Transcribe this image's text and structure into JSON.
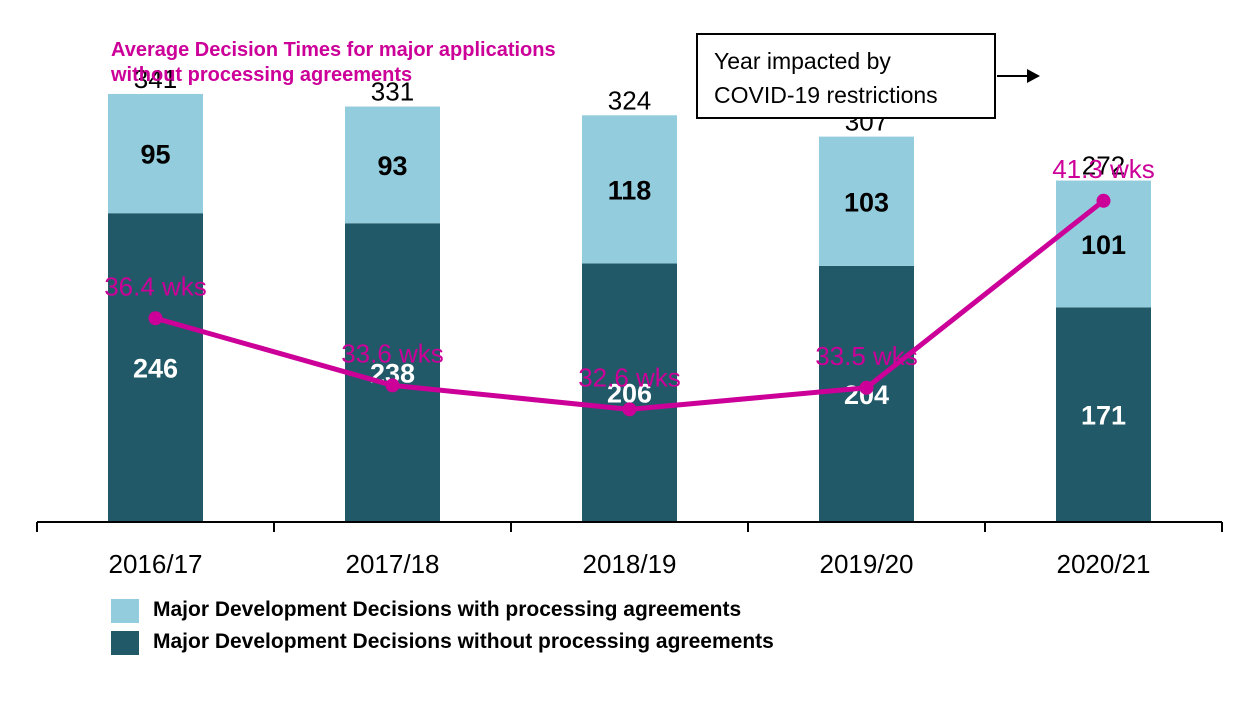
{
  "chart_data": {
    "type": "bar",
    "stacked": true,
    "categories": [
      "2016/17",
      "2017/18",
      "2018/19",
      "2019/20",
      "2020/21"
    ],
    "series": [
      {
        "name": "Major Development Decisions without processing agreements",
        "values": [
          246,
          238,
          206,
          204,
          171
        ],
        "color": "#215968"
      },
      {
        "name": "Major Development Decisions with  processing agreements",
        "values": [
          95,
          93,
          118,
          103,
          101
        ],
        "color": "#93CDDD"
      }
    ],
    "totals": [
      "341",
      "331",
      "324",
      "307",
      "272"
    ],
    "ylim": [
      0,
      380
    ],
    "line_series": {
      "name": "Average Decision Times for major applications without processing agreements",
      "title_lines": [
        "Average Decision  Times for major applications",
        "without processing agreements"
      ],
      "values": [
        36.4,
        33.6,
        32.6,
        33.5,
        41.3
      ],
      "labels": [
        "36.4 wks",
        "33.6 wks",
        "32.6 wks",
        "33.5 wks",
        "41.3 wks"
      ],
      "ylim": [
        27.9,
        47.8
      ],
      "color": "#CC0099"
    },
    "annotation": {
      "lines": [
        "Year impacted by",
        "COVID-19 restrictions"
      ],
      "target_category": "2020/21"
    },
    "legend_position": "bottom-left",
    "grid": false,
    "xlabel": "",
    "ylabel": ""
  }
}
